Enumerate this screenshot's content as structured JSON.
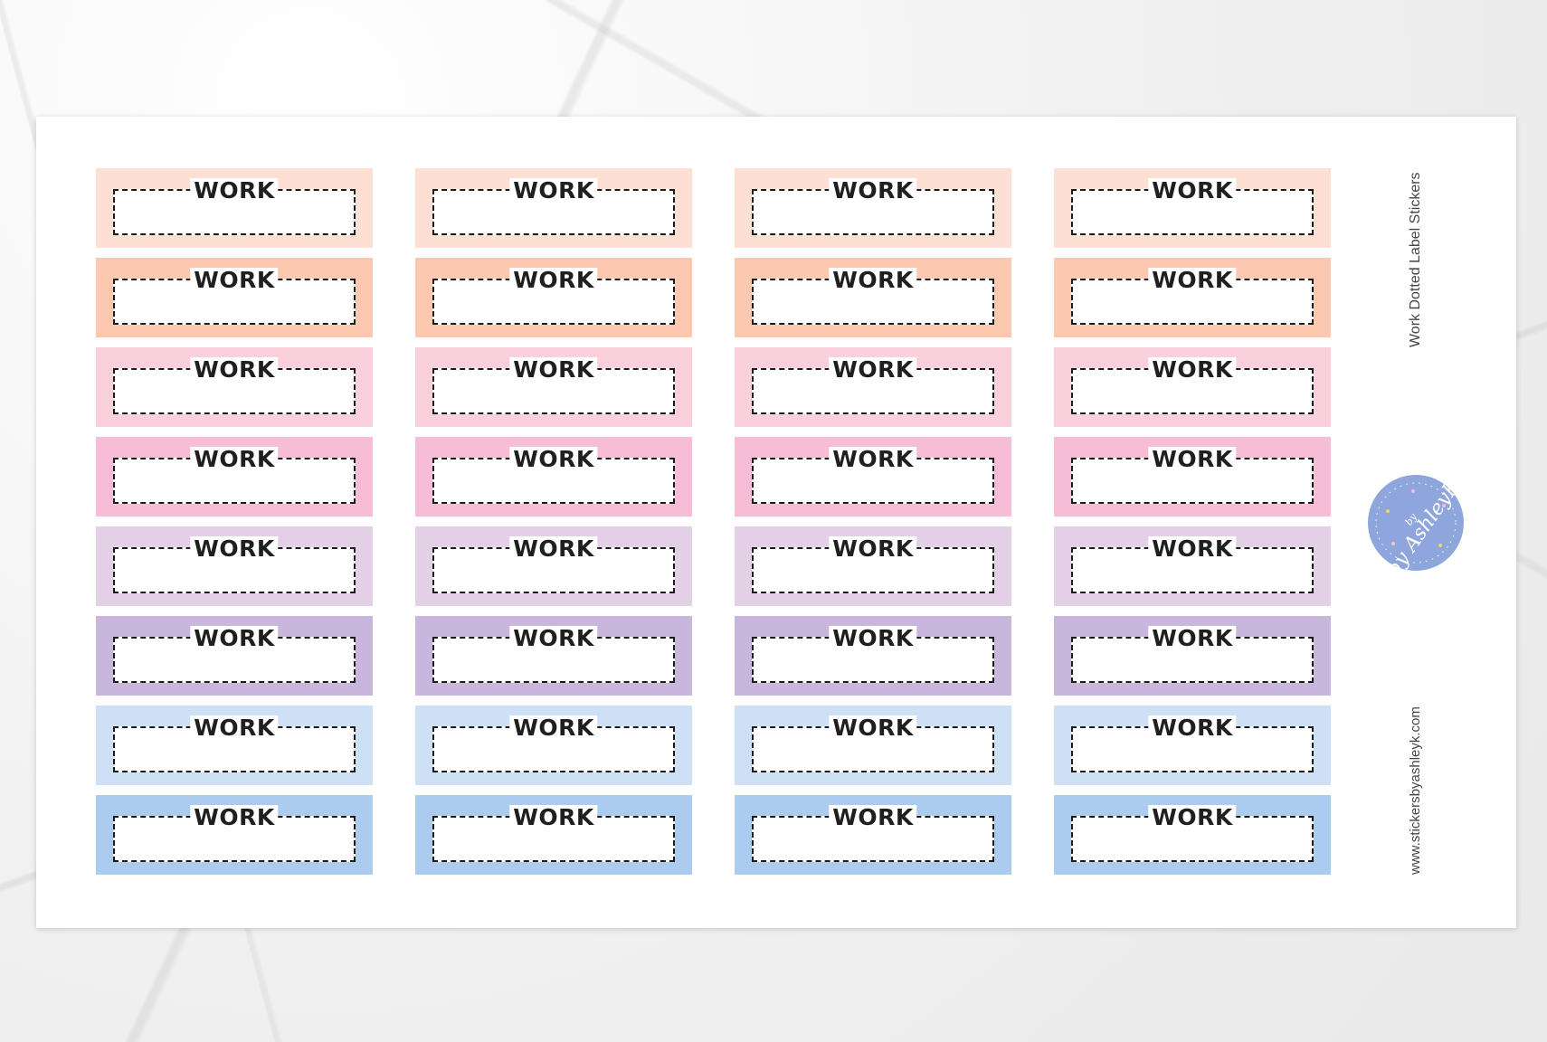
{
  "sheet": {
    "title": "Work Dotted Label Stickers",
    "url": "www.stickersbyashleyk.com",
    "logo_text": "by AshleyK"
  },
  "colors": {
    "rows": [
      "#fde0d3",
      "#fcc8b0",
      "#fad0dc",
      "#f7bdd6",
      "#e3d0e7",
      "#c9b6dc",
      "#cde0f5",
      "#abccee"
    ]
  },
  "stickers": [
    {
      "label": "WORK"
    },
    {
      "label": "WORK"
    },
    {
      "label": "WORK"
    },
    {
      "label": "WORK"
    },
    {
      "label": "WORK"
    },
    {
      "label": "WORK"
    },
    {
      "label": "WORK"
    },
    {
      "label": "WORK"
    },
    {
      "label": "WORK"
    },
    {
      "label": "WORK"
    },
    {
      "label": "WORK"
    },
    {
      "label": "WORK"
    },
    {
      "label": "WORK"
    },
    {
      "label": "WORK"
    },
    {
      "label": "WORK"
    },
    {
      "label": "WORK"
    },
    {
      "label": "WORK"
    },
    {
      "label": "WORK"
    },
    {
      "label": "WORK"
    },
    {
      "label": "WORK"
    },
    {
      "label": "WORK"
    },
    {
      "label": "WORK"
    },
    {
      "label": "WORK"
    },
    {
      "label": "WORK"
    },
    {
      "label": "WORK"
    },
    {
      "label": "WORK"
    },
    {
      "label": "WORK"
    },
    {
      "label": "WORK"
    },
    {
      "label": "WORK"
    },
    {
      "label": "WORK"
    },
    {
      "label": "WORK"
    },
    {
      "label": "WORK"
    }
  ]
}
